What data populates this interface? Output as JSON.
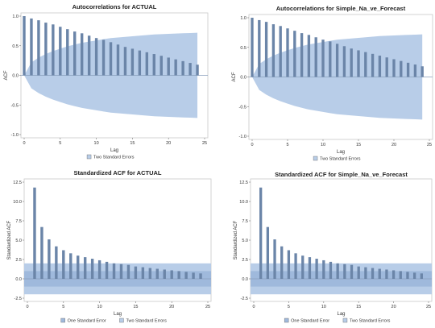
{
  "colors": {
    "bar": "#6b85a8",
    "band_two_se": "#b8cde8",
    "band_one_se": "#9fb9dc",
    "zero_line": "#8a9fbd",
    "frame": "#c9c9c9"
  },
  "chart_data": [
    {
      "type": "bar",
      "title": "Autocorrelations for ACTUAL",
      "xlabel": "Lag",
      "ylabel": "ACF",
      "xlim": [
        0,
        25
      ],
      "ylim": [
        -1.0,
        1.0
      ],
      "xticks": [
        "0",
        "5",
        "10",
        "15",
        "20",
        "25"
      ],
      "yticks": [
        "-1.0",
        "-0.5",
        "0.0",
        "0.5",
        "1.0"
      ],
      "x": [
        0,
        1,
        2,
        3,
        4,
        5,
        6,
        7,
        8,
        9,
        10,
        11,
        12,
        13,
        14,
        15,
        16,
        17,
        18,
        19,
        20,
        21,
        22,
        23,
        24
      ],
      "values": [
        1.0,
        0.96,
        0.93,
        0.89,
        0.86,
        0.82,
        0.78,
        0.74,
        0.71,
        0.67,
        0.63,
        0.6,
        0.56,
        0.52,
        0.48,
        0.45,
        0.42,
        0.39,
        0.36,
        0.33,
        0.3,
        0.27,
        0.24,
        0.21,
        0.18
      ],
      "band": {
        "name": "Two Standard Errors",
        "x": [
          0,
          1,
          2,
          3,
          4,
          5,
          6,
          7,
          8,
          9,
          10,
          11,
          12,
          13,
          14,
          15,
          16,
          17,
          18,
          19,
          20,
          21,
          22,
          23,
          24
        ],
        "upper": [
          0.0,
          0.22,
          0.3,
          0.36,
          0.41,
          0.45,
          0.49,
          0.52,
          0.55,
          0.57,
          0.59,
          0.61,
          0.63,
          0.64,
          0.65,
          0.66,
          0.67,
          0.68,
          0.69,
          0.695,
          0.7,
          0.705,
          0.71,
          0.715,
          0.72
        ]
      },
      "legend": [
        "Two Standard Errors"
      ],
      "grid": false
    },
    {
      "type": "bar",
      "title": "Autocorrelations for Simple_Na_ve_Forecast",
      "xlabel": "Lag",
      "ylabel": "ACF",
      "xlim": [
        0,
        25
      ],
      "ylim": [
        -1.0,
        1.0
      ],
      "xticks": [
        "0",
        "5",
        "10",
        "15",
        "20",
        "25"
      ],
      "yticks": [
        "-1.0",
        "-0.5",
        "0.0",
        "0.5",
        "1.0"
      ],
      "x": [
        0,
        1,
        2,
        3,
        4,
        5,
        6,
        7,
        8,
        9,
        10,
        11,
        12,
        13,
        14,
        15,
        16,
        17,
        18,
        19,
        20,
        21,
        22,
        23,
        24
      ],
      "values": [
        1.0,
        0.96,
        0.93,
        0.89,
        0.86,
        0.82,
        0.78,
        0.74,
        0.71,
        0.67,
        0.63,
        0.6,
        0.56,
        0.52,
        0.48,
        0.45,
        0.42,
        0.39,
        0.36,
        0.33,
        0.3,
        0.27,
        0.24,
        0.21,
        0.18
      ],
      "band": {
        "name": "Two Standard Errors",
        "x": [
          0,
          1,
          2,
          3,
          4,
          5,
          6,
          7,
          8,
          9,
          10,
          11,
          12,
          13,
          14,
          15,
          16,
          17,
          18,
          19,
          20,
          21,
          22,
          23,
          24
        ],
        "upper": [
          0.0,
          0.22,
          0.3,
          0.36,
          0.41,
          0.45,
          0.49,
          0.52,
          0.55,
          0.57,
          0.59,
          0.61,
          0.63,
          0.64,
          0.65,
          0.66,
          0.67,
          0.68,
          0.69,
          0.695,
          0.7,
          0.705,
          0.71,
          0.715,
          0.72
        ]
      },
      "legend": [
        "Two Standard Errors"
      ],
      "grid": false
    },
    {
      "type": "bar",
      "title": "Standardized ACF for ACTUAL",
      "xlabel": "Lag",
      "ylabel": "Standardized ACF",
      "xlim": [
        0,
        25
      ],
      "ylim": [
        -2.5,
        12.5
      ],
      "xticks": [
        "0",
        "5",
        "10",
        "15",
        "20",
        "25"
      ],
      "yticks": [
        "-2.5",
        "0.0",
        "2.5",
        "5.0",
        "7.5",
        "10.0",
        "12.5"
      ],
      "x": [
        1,
        2,
        3,
        4,
        5,
        6,
        7,
        8,
        9,
        10,
        11,
        12,
        13,
        14,
        15,
        16,
        17,
        18,
        19,
        20,
        21,
        22,
        23,
        24
      ],
      "values": [
        11.8,
        6.7,
        5.1,
        4.2,
        3.7,
        3.3,
        3.0,
        2.8,
        2.6,
        2.4,
        2.2,
        2.0,
        1.9,
        1.8,
        1.6,
        1.5,
        1.4,
        1.3,
        1.2,
        1.1,
        1.0,
        0.9,
        0.8,
        0.7
      ],
      "bands": [
        {
          "name": "One Standard Error",
          "lower": -1,
          "upper": 1
        },
        {
          "name": "Two Standard Errors",
          "lower": -2,
          "upper": 2
        }
      ],
      "legend": [
        "One Standard Error",
        "Two Standard Errors"
      ],
      "grid": false
    },
    {
      "type": "bar",
      "title": "Standardized ACF for Simple_Na_ve_Forecast",
      "xlabel": "Lag",
      "ylabel": "Standardized ACF",
      "xlim": [
        0,
        25
      ],
      "ylim": [
        -2.5,
        12.5
      ],
      "xticks": [
        "0",
        "5",
        "10",
        "15",
        "20",
        "25"
      ],
      "yticks": [
        "-2.5",
        "0.0",
        "2.5",
        "5.0",
        "7.5",
        "10.0",
        "12.5"
      ],
      "x": [
        1,
        2,
        3,
        4,
        5,
        6,
        7,
        8,
        9,
        10,
        11,
        12,
        13,
        14,
        15,
        16,
        17,
        18,
        19,
        20,
        21,
        22,
        23,
        24
      ],
      "values": [
        11.8,
        6.7,
        5.1,
        4.2,
        3.7,
        3.3,
        3.0,
        2.8,
        2.6,
        2.4,
        2.2,
        2.0,
        1.9,
        1.8,
        1.6,
        1.5,
        1.4,
        1.3,
        1.2,
        1.1,
        1.0,
        0.9,
        0.8,
        0.7
      ],
      "bands": [
        {
          "name": "One Standard Error",
          "lower": -1,
          "upper": 1
        },
        {
          "name": "Two Standard Errors",
          "lower": -2,
          "upper": 2
        }
      ],
      "legend": [
        "One Standard Error",
        "Two Standard Errors"
      ],
      "grid": false
    }
  ]
}
